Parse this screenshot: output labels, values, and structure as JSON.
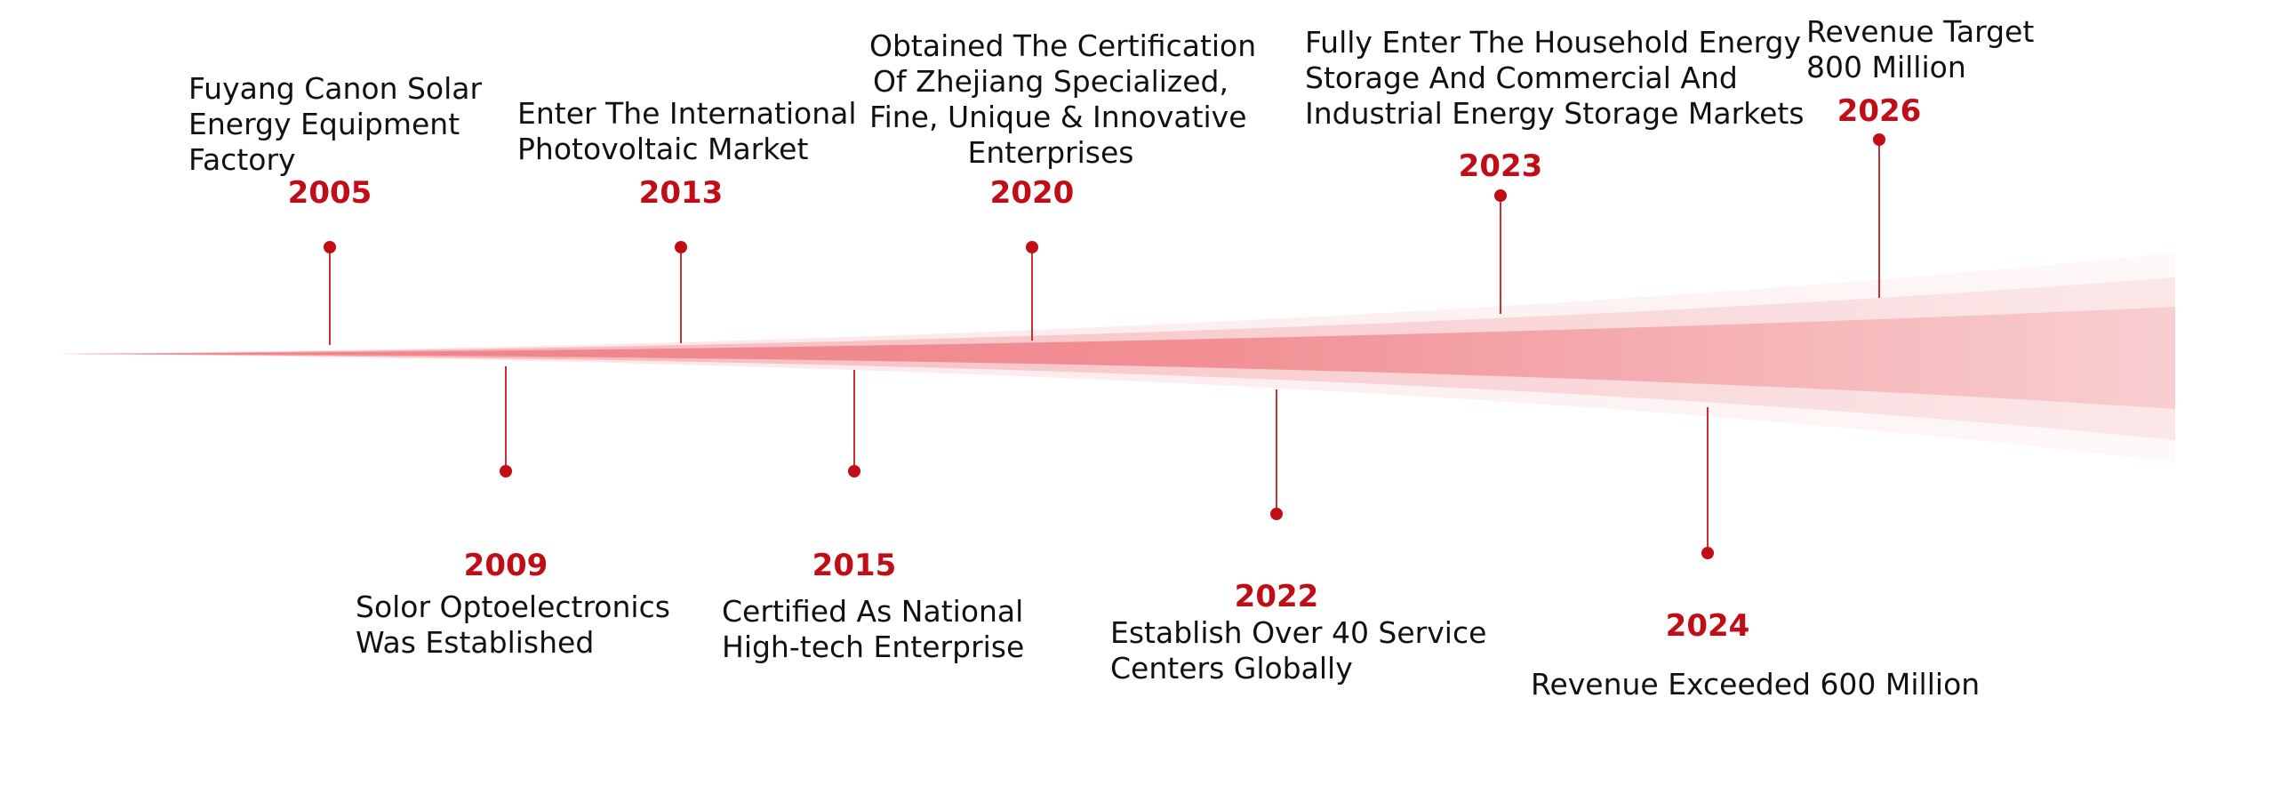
{
  "milestones": [
    {
      "year": "2005",
      "lines": [
        "Fuyang Canon Solar",
        "Energy Equipment",
        "Factory"
      ]
    },
    {
      "year": "2009",
      "lines": [
        "Solor Optoelectronics",
        "Was Established"
      ]
    },
    {
      "year": "2013",
      "lines": [
        "Enter The International",
        "Photovoltaic Market"
      ]
    },
    {
      "year": "2015",
      "lines": [
        "Certified As  National",
        "High-tech Enterprise"
      ]
    },
    {
      "year": "2020",
      "lines": [
        "Obtained The Certification",
        "Of Zhejiang Specialized,",
        "Fine, Unique & Innovative",
        "Enterprises"
      ]
    },
    {
      "year": "2022",
      "lines": [
        "Establish Over 40 Service",
        "Centers Globally"
      ]
    },
    {
      "year": "2023",
      "lines": [
        "Fully Enter The Household Energy",
        "Storage And Commercial And",
        "Industrial Energy Storage Markets"
      ]
    },
    {
      "year": "2024",
      "lines": [
        "Revenue Exceeded 600 Million"
      ]
    },
    {
      "year": "2026",
      "lines": [
        "Revenue Target",
        "800 Million"
      ]
    }
  ],
  "colors": {
    "accent": "#c00d16",
    "band": "#ee7a80",
    "text": "#111111"
  }
}
